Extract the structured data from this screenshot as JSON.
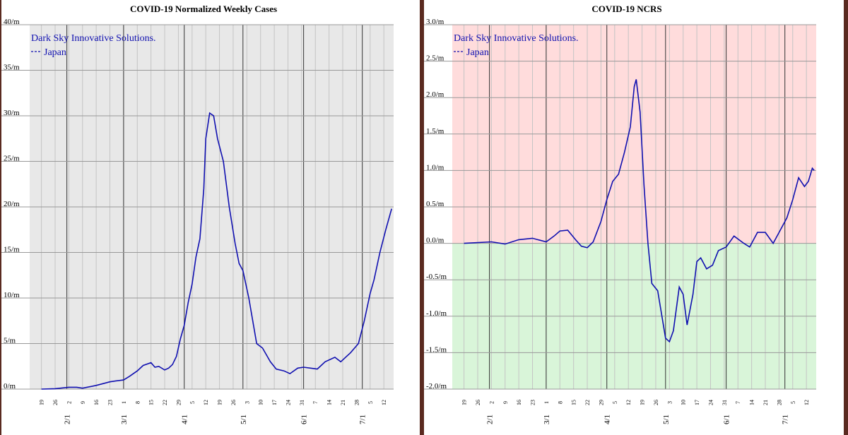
{
  "chart_data": [
    {
      "type": "line",
      "title": "COVID-19 Normalized Weekly Cases",
      "annotations": [
        "Dark Sky Innovative Solutions."
      ],
      "x": [
        0,
        7,
        14,
        18,
        21,
        28,
        35,
        38,
        42,
        45,
        49,
        52,
        56,
        58,
        60,
        63,
        65,
        67,
        69,
        71,
        73,
        75,
        77,
        79,
        81,
        83,
        84,
        86,
        88,
        90,
        93,
        96,
        99,
        101,
        103,
        106,
        110,
        113,
        117,
        120,
        124,
        127,
        131,
        134,
        141,
        145,
        150,
        153,
        158,
        162,
        165,
        168,
        170,
        173,
        176,
        179
      ],
      "series": [
        {
          "name": "Japan",
          "color": "#1010b0",
          "values": [
            0,
            0.05,
            0.2,
            0.2,
            0.1,
            0.4,
            0.8,
            0.9,
            1.0,
            1.4,
            2.0,
            2.6,
            2.9,
            2.4,
            2.5,
            2.1,
            2.3,
            2.7,
            3.6,
            5.5,
            7.0,
            9.5,
            11.5,
            14.5,
            16.5,
            22,
            27.5,
            30.3,
            30.0,
            27.5,
            25,
            20,
            16,
            13.8,
            13,
            10,
            5,
            4.5,
            3,
            2.2,
            2,
            1.7,
            2.3,
            2.4,
            2.2,
            3,
            3.5,
            3,
            4,
            5,
            7.5,
            10.5,
            12,
            15,
            17.5,
            19.8
          ]
        }
      ],
      "xlim": [
        -6,
        180
      ],
      "ylim": [
        0,
        40
      ],
      "yticks": [
        {
          "value": 0,
          "label": "0/m"
        },
        {
          "value": 5,
          "label": "5/m"
        },
        {
          "value": 10,
          "label": "10/m"
        },
        {
          "value": 15,
          "label": "15/m"
        },
        {
          "value": 20,
          "label": "20/m"
        },
        {
          "value": 25,
          "label": "25/m"
        },
        {
          "value": 30,
          "label": "30/m"
        },
        {
          "value": 35,
          "label": "35/m"
        },
        {
          "value": 40,
          "label": "40/m"
        }
      ],
      "xticks": [
        {
          "value": 0,
          "label": "19"
        },
        {
          "value": 7,
          "label": "26"
        },
        {
          "value": 14,
          "label": "2"
        },
        {
          "value": 21,
          "label": "9"
        },
        {
          "value": 28,
          "label": "16"
        },
        {
          "value": 35,
          "label": "23"
        },
        {
          "value": 42,
          "label": "1"
        },
        {
          "value": 49,
          "label": "8"
        },
        {
          "value": 56,
          "label": "15"
        },
        {
          "value": 63,
          "label": "22"
        },
        {
          "value": 70,
          "label": "29"
        },
        {
          "value": 77,
          "label": "5"
        },
        {
          "value": 84,
          "label": "12"
        },
        {
          "value": 91,
          "label": "19"
        },
        {
          "value": 98,
          "label": "26"
        },
        {
          "value": 105,
          "label": "3"
        },
        {
          "value": 112,
          "label": "10"
        },
        {
          "value": 119,
          "label": "17"
        },
        {
          "value": 126,
          "label": "24"
        },
        {
          "value": 133,
          "label": "31"
        },
        {
          "value": 140,
          "label": "7"
        },
        {
          "value": 147,
          "label": "14"
        },
        {
          "value": 154,
          "label": "21"
        },
        {
          "value": 161,
          "label": "28"
        },
        {
          "value": 168,
          "label": "5"
        },
        {
          "value": 175,
          "label": "12"
        }
      ],
      "month_ticks": [
        {
          "value": 13,
          "label": "2/1"
        },
        {
          "value": 42,
          "label": "3/1"
        },
        {
          "value": 73,
          "label": "4/1"
        },
        {
          "value": 103,
          "label": "5/1"
        },
        {
          "value": 134,
          "label": "6/1"
        },
        {
          "value": 164,
          "label": "7/1"
        }
      ],
      "grid": true,
      "background": "#e8e8e8"
    },
    {
      "type": "line",
      "title": "COVID-19 NCRS",
      "annotations": [
        "Dark Sky Innovative Solutions."
      ],
      "x": [
        0,
        14,
        21,
        28,
        35,
        42,
        46,
        49,
        53,
        57,
        60,
        63,
        66,
        70,
        73,
        76,
        79,
        82,
        85,
        87,
        88,
        90,
        92,
        94,
        96,
        99,
        103,
        105,
        107,
        110,
        112,
        114,
        117,
        119,
        121,
        124,
        127,
        130,
        134,
        138,
        143,
        146,
        150,
        154,
        158,
        162,
        165,
        168,
        171,
        174,
        176,
        178,
        179
      ],
      "series": [
        {
          "name": "Japan",
          "color": "#1010b0",
          "values": [
            0,
            0.02,
            -0.01,
            0.05,
            0.07,
            0.02,
            0.1,
            0.17,
            0.18,
            0.05,
            -0.04,
            -0.06,
            0.02,
            0.3,
            0.6,
            0.85,
            0.95,
            1.25,
            1.6,
            2.15,
            2.25,
            1.8,
            0.8,
            0,
            -0.55,
            -0.65,
            -1.3,
            -1.35,
            -1.2,
            -0.6,
            -0.7,
            -1.12,
            -0.7,
            -0.25,
            -0.2,
            -0.35,
            -0.3,
            -0.1,
            -0.05,
            0.1,
            0,
            -0.05,
            0.15,
            0.15,
            0,
            0.2,
            0.35,
            0.6,
            0.9,
            0.78,
            0.85,
            1.03,
            1.0
          ]
        }
      ],
      "xlim": [
        -6,
        180
      ],
      "ylim": [
        -2,
        3
      ],
      "yticks": [
        {
          "value": -2,
          "label": "-2.0/m"
        },
        {
          "value": -1.5,
          "label": "-1.5/m"
        },
        {
          "value": -1,
          "label": "-1.0/m"
        },
        {
          "value": -0.5,
          "label": "-0.5/m"
        },
        {
          "value": 0,
          "label": "0.0/m"
        },
        {
          "value": 0.5,
          "label": "0.5/m"
        },
        {
          "value": 1,
          "label": "1.0/m"
        },
        {
          "value": 1.5,
          "label": "1.5/m"
        },
        {
          "value": 2,
          "label": "2.0/m"
        },
        {
          "value": 2.5,
          "label": "2.5/m"
        },
        {
          "value": 3,
          "label": "3.0/m"
        }
      ],
      "xticks": [
        {
          "value": 0,
          "label": "19"
        },
        {
          "value": 7,
          "label": "26"
        },
        {
          "value": 14,
          "label": "2"
        },
        {
          "value": 21,
          "label": "9"
        },
        {
          "value": 28,
          "label": "16"
        },
        {
          "value": 35,
          "label": "23"
        },
        {
          "value": 42,
          "label": "1"
        },
        {
          "value": 49,
          "label": "8"
        },
        {
          "value": 56,
          "label": "15"
        },
        {
          "value": 63,
          "label": "22"
        },
        {
          "value": 70,
          "label": "29"
        },
        {
          "value": 77,
          "label": "5"
        },
        {
          "value": 84,
          "label": "12"
        },
        {
          "value": 91,
          "label": "19"
        },
        {
          "value": 98,
          "label": "26"
        },
        {
          "value": 105,
          "label": "3"
        },
        {
          "value": 112,
          "label": "10"
        },
        {
          "value": 119,
          "label": "17"
        },
        {
          "value": 126,
          "label": "24"
        },
        {
          "value": 133,
          "label": "31"
        },
        {
          "value": 140,
          "label": "7"
        },
        {
          "value": 147,
          "label": "14"
        },
        {
          "value": 154,
          "label": "21"
        },
        {
          "value": 161,
          "label": "28"
        },
        {
          "value": 168,
          "label": "5"
        },
        {
          "value": 175,
          "label": "12"
        }
      ],
      "month_ticks": [
        {
          "value": 13,
          "label": "2/1"
        },
        {
          "value": 42,
          "label": "3/1"
        },
        {
          "value": 73,
          "label": "4/1"
        },
        {
          "value": 103,
          "label": "5/1"
        },
        {
          "value": 134,
          "label": "6/1"
        },
        {
          "value": 164,
          "label": "7/1"
        }
      ],
      "grid": true,
      "above_color": "#ffdcdc",
      "below_color": "#d9f5d9"
    }
  ]
}
